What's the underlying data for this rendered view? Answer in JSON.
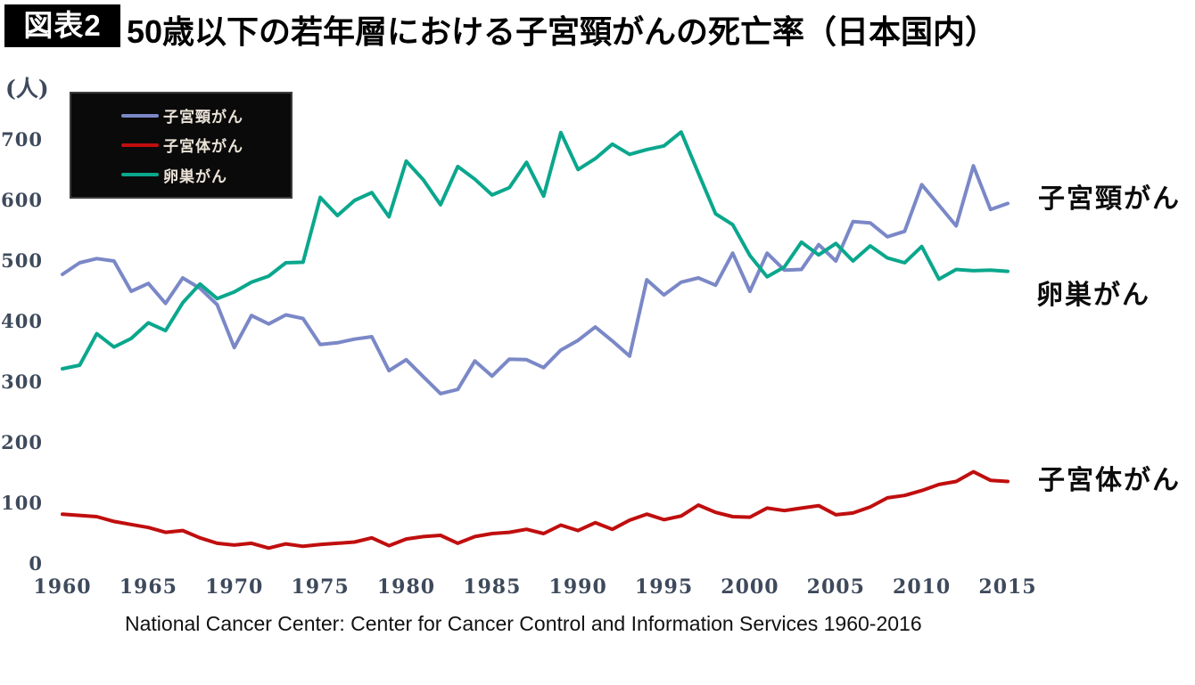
{
  "header": {
    "figure_label": "図表2",
    "title": "50歳以下の若年層における子宮頸がんの死亡率（日本国内）"
  },
  "y_axis": {
    "unit_label": "(人)",
    "ticks": [
      700,
      600,
      500,
      400,
      300,
      200,
      100,
      0
    ]
  },
  "x_axis": {
    "tick_labels": [
      "1960",
      "1965",
      "1970",
      "1975",
      "1980",
      "1985",
      "1990",
      "1995",
      "2000",
      "2005",
      "2010",
      "2015"
    ]
  },
  "legend": {
    "items": [
      {
        "label": "子宮頸がん",
        "color": "#7b88c7"
      },
      {
        "label": "子宮体がん",
        "color": "#c00e0e"
      },
      {
        "label": "卵巣がん",
        "color": "#0aa78d"
      }
    ]
  },
  "right_labels": {
    "cervical": "子宮頸がん",
    "ovarian": "卵巣がん",
    "corpus": "子宮体がん"
  },
  "source_note": "National Cancer Center: Center for Cancer Control and Information Services 1960-2016",
  "chart_data": {
    "type": "line",
    "title": "50歳以下の若年層における子宮頸がんの死亡率（日本国内）",
    "ylabel": "(人)",
    "xlabel": "",
    "grid": false,
    "legend_position": "top-left",
    "ylim": [
      0,
      760
    ],
    "years": {
      "start": 1960,
      "end": 2015,
      "step": 1
    },
    "x_ticks": [
      1960,
      1965,
      1970,
      1975,
      1980,
      1985,
      1990,
      1995,
      2000,
      2005,
      2010,
      2015
    ],
    "series": [
      {
        "name": "子宮頸がん",
        "color": "#7b88c7",
        "values": [
          478,
          497,
          504,
          500,
          450,
          463,
          430,
          472,
          455,
          428,
          357,
          410,
          396,
          411,
          405,
          362,
          365,
          371,
          375,
          319,
          337,
          309,
          281,
          288,
          335,
          310,
          338,
          337,
          324,
          353,
          369,
          391,
          368,
          343,
          469,
          444,
          465,
          472,
          460,
          513,
          450,
          513,
          485,
          486,
          527,
          500,
          565,
          563,
          540,
          549,
          626,
          592,
          558,
          657,
          585,
          595
        ]
      },
      {
        "name": "子宮体がん",
        "color": "#c00e0e",
        "values": [
          82,
          80,
          78,
          70,
          65,
          60,
          52,
          55,
          43,
          34,
          31,
          34,
          26,
          33,
          29,
          32,
          34,
          36,
          43,
          30,
          41,
          45,
          47,
          34,
          45,
          50,
          52,
          57,
          50,
          64,
          55,
          68,
          57,
          72,
          82,
          73,
          79,
          97,
          85,
          78,
          77,
          92,
          88,
          92,
          96,
          81,
          84,
          94,
          109,
          113,
          121,
          131,
          136,
          152,
          138,
          136
        ]
      },
      {
        "name": "卵巣がん",
        "color": "#0aa78d",
        "values": [
          322,
          328,
          380,
          358,
          372,
          398,
          385,
          431,
          462,
          438,
          449,
          465,
          475,
          497,
          498,
          605,
          575,
          600,
          613,
          573,
          665,
          634,
          593,
          656,
          635,
          609,
          621,
          663,
          607,
          712,
          651,
          669,
          693,
          676,
          684,
          690,
          713,
          645,
          578,
          560,
          509,
          474,
          490,
          531,
          510,
          529,
          500,
          525,
          505,
          497,
          524,
          470,
          486,
          484,
          485,
          483
        ]
      }
    ]
  }
}
